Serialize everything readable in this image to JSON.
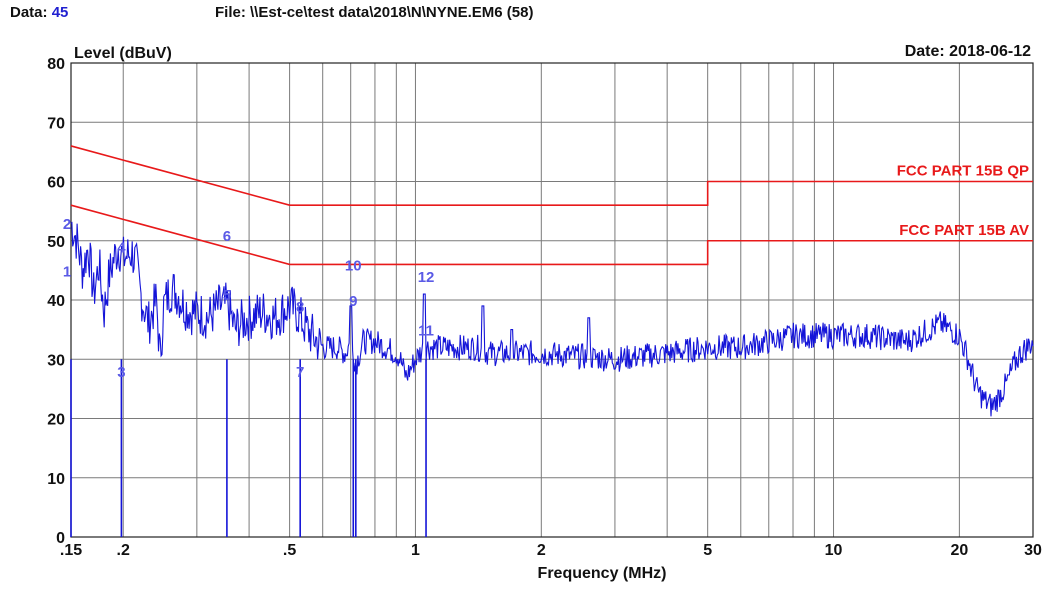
{
  "header": {
    "data_label": "Data:",
    "data_value": "45",
    "file_label": "File:",
    "file_path": "\\\\Est-ce\\test data\\2018\\N\\NYNE.EM6",
    "file_count": "(58)",
    "date_label": "Date:",
    "date_value": "2018-06-12"
  },
  "chart_data": {
    "type": "line",
    "title": "",
    "xlabel": "Frequency (MHz)",
    "ylabel": "Level (dBuV)",
    "x_scale": "log",
    "xlim": [
      0.15,
      30
    ],
    "ylim": [
      0,
      80
    ],
    "grid": true,
    "x_ticks": [
      {
        "v": 0.15,
        "label": ".15"
      },
      {
        "v": 0.2,
        "label": ".2"
      },
      {
        "v": 0.5,
        "label": ".5"
      },
      {
        "v": 1,
        "label": "1"
      },
      {
        "v": 2,
        "label": "2"
      },
      {
        "v": 5,
        "label": "5"
      },
      {
        "v": 10,
        "label": "10"
      },
      {
        "v": 20,
        "label": "20"
      },
      {
        "v": 30,
        "label": "30"
      }
    ],
    "x_minor": [
      0.3,
      0.4,
      0.6,
      0.7,
      0.8,
      0.9,
      3,
      4,
      6,
      7,
      8,
      9
    ],
    "y_ticks": [
      0,
      10,
      20,
      30,
      40,
      50,
      60,
      70,
      80
    ],
    "limit_color": "#e8191a",
    "trace_color": "#1414d8",
    "marker_color": "#5a5ae6",
    "limit_lines": [
      {
        "name": "FCC PART 15B QP",
        "points": [
          [
            0.15,
            66
          ],
          [
            0.5,
            56
          ],
          [
            5,
            56
          ],
          [
            5,
            60
          ],
          [
            30,
            60
          ]
        ]
      },
      {
        "name": "FCC PART 15B AV",
        "points": [
          [
            0.15,
            56
          ],
          [
            0.5,
            46
          ],
          [
            5,
            46
          ],
          [
            5,
            50
          ],
          [
            30,
            50
          ]
        ]
      }
    ],
    "series": [
      {
        "values": [
          [
            0.15,
            53
          ],
          [
            0.155,
            50
          ],
          [
            0.16,
            45
          ],
          [
            0.165,
            49
          ],
          [
            0.17,
            41
          ],
          [
            0.175,
            46
          ],
          [
            0.18,
            38
          ],
          [
            0.185,
            44
          ],
          [
            0.19,
            47
          ],
          [
            0.195,
            49
          ],
          [
            0.2,
            47
          ],
          [
            0.21,
            48
          ],
          [
            0.215,
            46
          ],
          [
            0.22,
            41
          ],
          [
            0.23,
            36
          ],
          [
            0.24,
            40
          ],
          [
            0.245,
            30
          ],
          [
            0.25,
            39
          ],
          [
            0.26,
            42
          ],
          [
            0.27,
            41
          ],
          [
            0.28,
            39
          ],
          [
            0.29,
            38
          ],
          [
            0.3,
            38
          ],
          [
            0.32,
            37
          ],
          [
            0.34,
            39
          ],
          [
            0.355,
            39
          ],
          [
            0.36,
            38
          ],
          [
            0.37,
            35
          ],
          [
            0.38,
            36
          ],
          [
            0.4,
            37
          ],
          [
            0.43,
            38
          ],
          [
            0.46,
            37
          ],
          [
            0.5,
            39
          ],
          [
            0.52,
            38
          ],
          [
            0.55,
            35
          ],
          [
            0.6,
            32
          ],
          [
            0.65,
            32
          ],
          [
            0.68,
            31
          ],
          [
            0.7,
            33
          ],
          [
            0.72,
            29
          ],
          [
            0.75,
            33
          ],
          [
            0.8,
            33
          ],
          [
            0.85,
            32
          ],
          [
            0.9,
            31
          ],
          [
            0.92,
            30
          ],
          [
            0.95,
            27
          ],
          [
            1.0,
            30
          ],
          [
            1.05,
            32
          ],
          [
            1.2,
            32
          ],
          [
            1.4,
            32
          ],
          [
            1.5,
            31
          ],
          [
            2,
            31
          ],
          [
            3,
            30
          ],
          [
            4,
            31
          ],
          [
            5,
            32
          ],
          [
            6,
            32
          ],
          [
            7,
            33
          ],
          [
            8,
            34
          ],
          [
            10,
            34
          ],
          [
            12,
            34
          ],
          [
            15,
            33
          ],
          [
            18,
            36
          ],
          [
            19,
            35
          ],
          [
            20,
            34
          ],
          [
            21,
            30
          ],
          [
            22,
            25
          ],
          [
            23,
            23
          ],
          [
            24,
            22
          ],
          [
            25,
            24
          ],
          [
            26,
            26
          ],
          [
            27,
            29
          ],
          [
            28,
            31
          ],
          [
            29,
            32
          ],
          [
            30,
            33
          ]
        ]
      }
    ],
    "spikes": [
      {
        "x": 0.7,
        "y": 39
      },
      {
        "x": 1.05,
        "y": 41
      },
      {
        "x": 1.45,
        "y": 39
      },
      {
        "x": 2.6,
        "y": 37
      },
      {
        "x": 1.7,
        "y": 35
      }
    ],
    "markers": [
      {
        "id": "1",
        "x": 0.15,
        "y": 44
      },
      {
        "id": "2",
        "x": 0.15,
        "y": 52
      },
      {
        "id": "3",
        "x": 0.198,
        "y": 27
      },
      {
        "id": "4",
        "x": 0.198,
        "y": 48
      },
      {
        "id": "5",
        "x": 0.354,
        "y": 40
      },
      {
        "id": "6",
        "x": 0.354,
        "y": 50
      },
      {
        "id": "7",
        "x": 0.53,
        "y": 27
      },
      {
        "id": "8",
        "x": 0.53,
        "y": 38
      },
      {
        "id": "9",
        "x": 0.71,
        "y": 39
      },
      {
        "id": "10",
        "x": 0.71,
        "y": 45
      },
      {
        "id": "11",
        "x": 1.06,
        "y": 34
      },
      {
        "id": "12",
        "x": 1.06,
        "y": 43
      }
    ],
    "marker_drops": [
      0.15,
      0.198,
      0.354,
      0.53,
      0.71,
      0.72,
      1.06
    ]
  }
}
